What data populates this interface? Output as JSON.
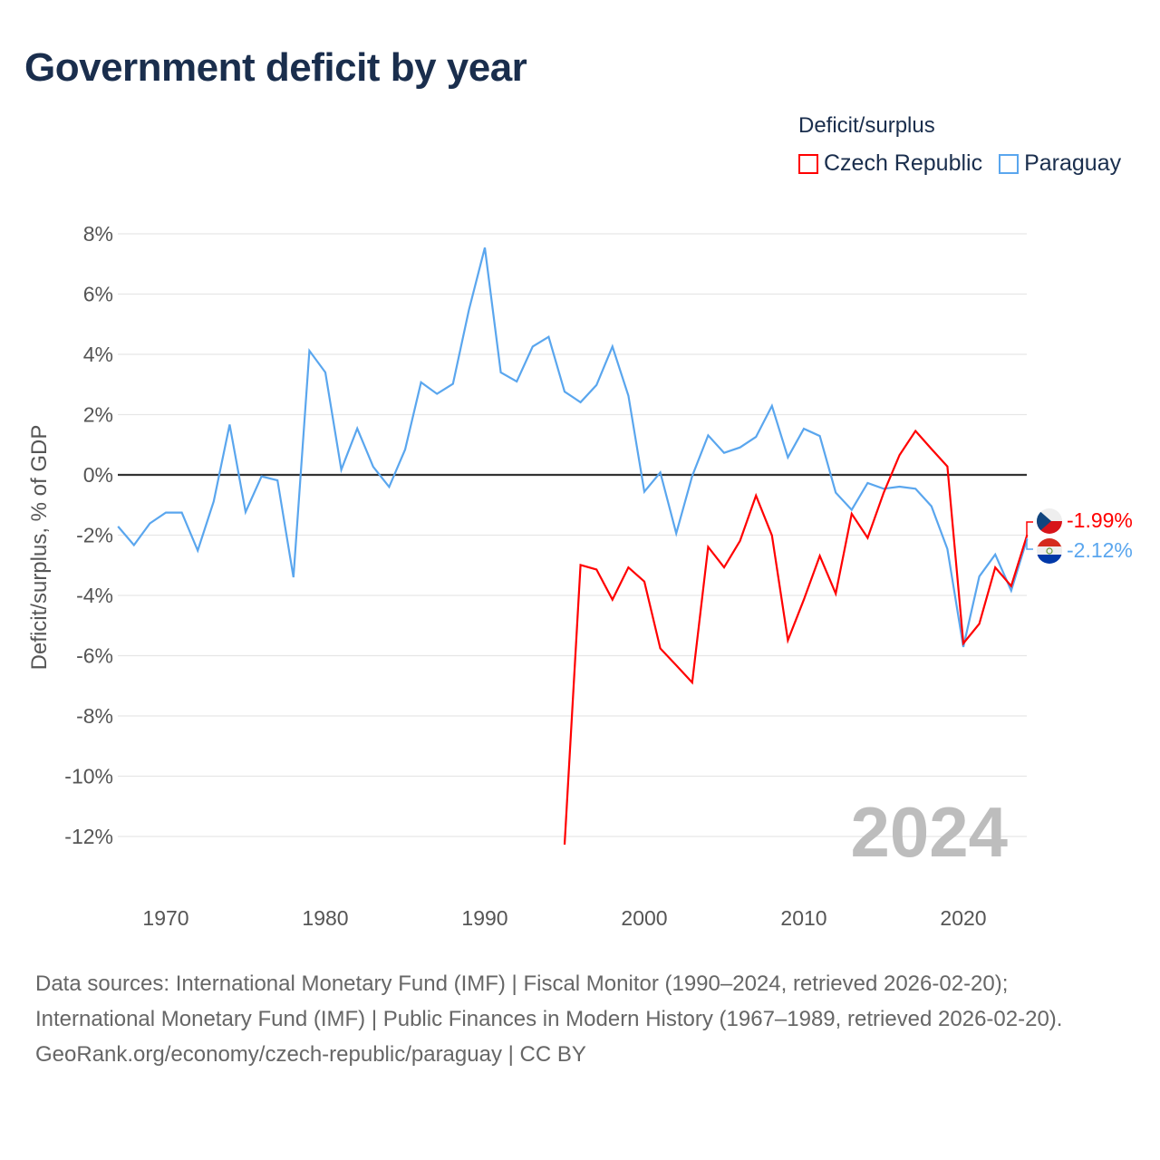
{
  "title": "Government deficit by year",
  "legend": {
    "title": "Deficit/surplus",
    "items": [
      {
        "label": "Czech Republic",
        "color": "#ff0000"
      },
      {
        "label": "Paraguay",
        "color": "#5aa6ee"
      }
    ]
  },
  "year_watermark": "2024",
  "end_labels": [
    {
      "series": "Czech Republic",
      "text": "-1.99%",
      "flag": "czech-flag-icon"
    },
    {
      "series": "Paraguay",
      "text": "-2.12%",
      "flag": "paraguay-flag-icon"
    }
  ],
  "footer": {
    "sources": "Data sources: International Monetary Fund (IMF) | Fiscal Monitor (1990–2024, retrieved 2026-02-20); International Monetary Fund (IMF) | Public Finances in Modern History (1967–1989, retrieved 2026-02-20).",
    "link": "GeoRank.org/economy/czech-republic/paraguay | CC BY"
  },
  "chart_data": {
    "type": "line",
    "title": "Government deficit by year",
    "xlabel": "",
    "ylabel": "Deficit/surplus, % of GDP",
    "xlim": [
      1967,
      2024
    ],
    "ylim": [
      -12,
      8
    ],
    "grid": true,
    "legend_position": "top-right",
    "x_ticks": [
      1970,
      1980,
      1990,
      2000,
      2010,
      2020
    ],
    "y_ticks": [
      8,
      6,
      4,
      2,
      0,
      -2,
      -4,
      -6,
      -8,
      -10,
      -12
    ],
    "y_tick_labels": [
      "8%",
      "6%",
      "4%",
      "2%",
      "0%",
      "-2%",
      "-4%",
      "-6%",
      "-8%",
      "-10%",
      "-12%"
    ],
    "x_tick_labels": [
      "1970",
      "1980",
      "1990",
      "2000",
      "2010",
      "2020"
    ],
    "series": [
      {
        "name": "Paraguay",
        "color": "#5aa6ee",
        "start_year": 1967,
        "values": [
          -1.71,
          -2.33,
          -1.61,
          -1.25,
          -1.25,
          -2.51,
          -0.88,
          1.67,
          -1.23,
          -0.05,
          -0.18,
          -3.4,
          4.12,
          3.4,
          0.17,
          1.54,
          0.27,
          -0.4,
          0.84,
          3.07,
          2.69,
          3.02,
          5.47,
          7.54,
          3.4,
          3.1,
          4.26,
          4.58,
          2.76,
          2.41,
          2.98,
          4.26,
          2.63,
          -0.56,
          0.08,
          -1.94,
          -0.04,
          1.31,
          0.73,
          0.91,
          1.26,
          2.29,
          0.58,
          1.53,
          1.29,
          -0.59,
          -1.16,
          -0.27,
          -0.46,
          -0.39,
          -0.46,
          -1.04,
          -2.46,
          -5.71,
          -3.37,
          -2.64,
          -3.84,
          -2.12
        ]
      },
      {
        "name": "Czech Republic",
        "color": "#ff0000",
        "start_year": 1995,
        "values": [
          -12.27,
          -2.99,
          -3.14,
          -4.14,
          -3.07,
          -3.54,
          -5.76,
          -6.32,
          -6.89,
          -2.39,
          -3.07,
          -2.19,
          -0.69,
          -2.01,
          -5.49,
          -4.14,
          -2.69,
          -3.94,
          -1.29,
          -2.09,
          -0.6,
          0.66,
          1.46,
          0.86,
          0.28,
          -5.59,
          -4.94,
          -3.07,
          -3.69,
          -1.99
        ]
      }
    ]
  }
}
